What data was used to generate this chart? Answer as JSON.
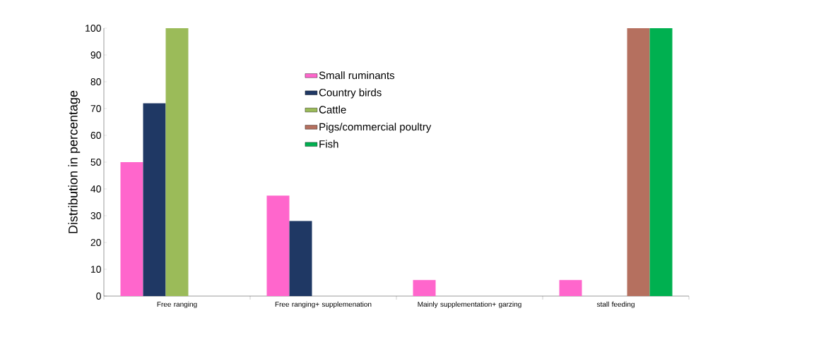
{
  "chart_data": {
    "type": "bar",
    "ylabel": "Distribution in percentage",
    "categories": [
      "Free ranging",
      "Free ranging+ supplemenation",
      "Mainly supplementation+ garzing",
      "stall feeding"
    ],
    "series": [
      {
        "name": "Small ruminants",
        "color": "#ff66cc",
        "values": [
          50,
          37.5,
          6,
          6
        ]
      },
      {
        "name": "Country birds",
        "color": "#1f3864",
        "values": [
          72,
          28,
          null,
          null
        ]
      },
      {
        "name": "Cattle",
        "color": "#9bbb59",
        "values": [
          100,
          null,
          null,
          null
        ]
      },
      {
        "name": "Pigs/commercial poultry",
        "color": "#b5705f",
        "values": [
          null,
          null,
          null,
          100
        ]
      },
      {
        "name": "Fish",
        "color": "#00b050",
        "values": [
          null,
          null,
          null,
          100
        ]
      }
    ],
    "ylim": [
      0,
      100
    ],
    "yticks": [
      0,
      10,
      20,
      30,
      40,
      50,
      60,
      70,
      80,
      90,
      100
    ],
    "grid": false,
    "legend": "top"
  }
}
